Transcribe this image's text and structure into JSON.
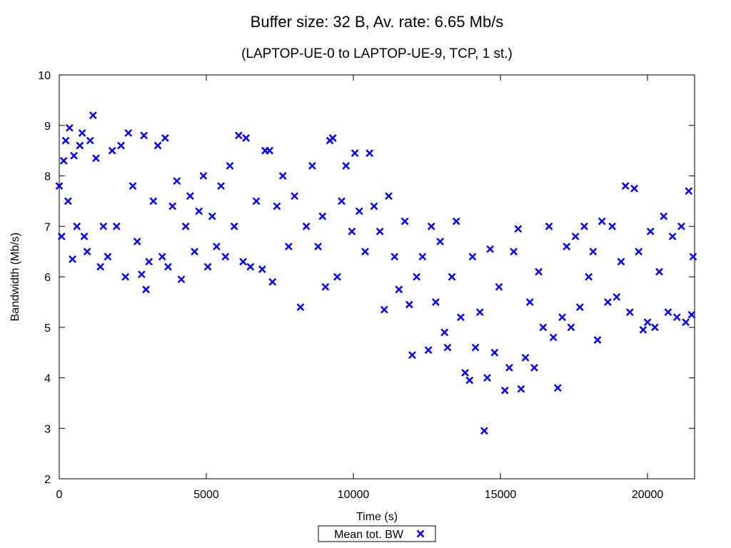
{
  "chart_data": {
    "type": "scatter",
    "title": "Buffer size: 32 B, Av. rate: 6.65 Mb/s",
    "subtitle": "(LAPTOP-UE-0 to LAPTOP-UE-9, TCP, 1 st.)",
    "xlabel": "Time (s)",
    "ylabel": "Bandwidth (Mb/s)",
    "xlim": [
      0,
      21600
    ],
    "ylim": [
      2,
      10
    ],
    "x_ticks": [
      "0",
      "5000",
      "10000",
      "15000",
      "20000"
    ],
    "x_tick_values": [
      0,
      5000,
      10000,
      15000,
      20000
    ],
    "y_ticks": [
      "2",
      "3",
      "4",
      "5",
      "6",
      "7",
      "8",
      "9",
      "10"
    ],
    "y_tick_values": [
      2,
      3,
      4,
      5,
      6,
      7,
      8,
      9,
      10
    ],
    "grid": false,
    "legend_position": "bottom-center",
    "series": [
      {
        "name": "Mean tot. BW",
        "marker": "x",
        "color": "#0000ee",
        "points": [
          [
            0,
            7.8
          ],
          [
            80,
            6.8
          ],
          [
            150,
            8.3
          ],
          [
            220,
            8.7
          ],
          [
            300,
            7.5
          ],
          [
            350,
            8.95
          ],
          [
            450,
            6.35
          ],
          [
            500,
            8.4
          ],
          [
            600,
            7.0
          ],
          [
            700,
            8.6
          ],
          [
            780,
            8.85
          ],
          [
            850,
            6.8
          ],
          [
            950,
            6.5
          ],
          [
            1050,
            8.7
          ],
          [
            1150,
            9.2
          ],
          [
            1250,
            8.35
          ],
          [
            1400,
            6.2
          ],
          [
            1500,
            7.0
          ],
          [
            1650,
            6.4
          ],
          [
            1800,
            8.5
          ],
          [
            1950,
            7.0
          ],
          [
            2100,
            8.6
          ],
          [
            2250,
            6.0
          ],
          [
            2350,
            8.85
          ],
          [
            2500,
            7.8
          ],
          [
            2650,
            6.7
          ],
          [
            2800,
            6.05
          ],
          [
            2880,
            8.8
          ],
          [
            2950,
            5.75
          ],
          [
            3050,
            6.3
          ],
          [
            3200,
            7.5
          ],
          [
            3350,
            8.6
          ],
          [
            3500,
            6.4
          ],
          [
            3600,
            8.75
          ],
          [
            3700,
            6.2
          ],
          [
            3850,
            7.4
          ],
          [
            4000,
            7.9
          ],
          [
            4150,
            5.95
          ],
          [
            4300,
            7.0
          ],
          [
            4450,
            7.6
          ],
          [
            4600,
            6.5
          ],
          [
            4750,
            7.3
          ],
          [
            4900,
            8.0
          ],
          [
            5050,
            6.2
          ],
          [
            5200,
            7.2
          ],
          [
            5350,
            6.6
          ],
          [
            5500,
            7.8
          ],
          [
            5650,
            6.4
          ],
          [
            5800,
            8.2
          ],
          [
            5950,
            7.0
          ],
          [
            6100,
            8.8
          ],
          [
            6250,
            6.3
          ],
          [
            6350,
            8.75
          ],
          [
            6500,
            6.2
          ],
          [
            6700,
            7.5
          ],
          [
            6900,
            6.15
          ],
          [
            7000,
            8.5
          ],
          [
            7150,
            8.5
          ],
          [
            7250,
            5.9
          ],
          [
            7400,
            7.4
          ],
          [
            7600,
            8.0
          ],
          [
            7800,
            6.6
          ],
          [
            8000,
            7.6
          ],
          [
            8200,
            5.4
          ],
          [
            8400,
            7.0
          ],
          [
            8600,
            8.2
          ],
          [
            8800,
            6.6
          ],
          [
            8950,
            7.2
          ],
          [
            9050,
            5.8
          ],
          [
            9200,
            8.7
          ],
          [
            9300,
            8.75
          ],
          [
            9450,
            6.0
          ],
          [
            9600,
            7.5
          ],
          [
            9750,
            8.2
          ],
          [
            9950,
            6.9
          ],
          [
            10050,
            8.45
          ],
          [
            10200,
            7.3
          ],
          [
            10400,
            6.5
          ],
          [
            10550,
            8.45
          ],
          [
            10700,
            7.4
          ],
          [
            10900,
            6.9
          ],
          [
            11050,
            5.35
          ],
          [
            11200,
            7.6
          ],
          [
            11400,
            6.4
          ],
          [
            11550,
            5.75
          ],
          [
            11750,
            7.1
          ],
          [
            11900,
            5.45
          ],
          [
            12000,
            4.45
          ],
          [
            12150,
            6.0
          ],
          [
            12350,
            6.4
          ],
          [
            12550,
            4.55
          ],
          [
            12650,
            7.0
          ],
          [
            12800,
            5.5
          ],
          [
            12950,
            6.7
          ],
          [
            13100,
            4.9
          ],
          [
            13200,
            4.6
          ],
          [
            13350,
            6.0
          ],
          [
            13500,
            7.1
          ],
          [
            13650,
            5.2
          ],
          [
            13800,
            4.1
          ],
          [
            13950,
            3.95
          ],
          [
            14050,
            6.4
          ],
          [
            14150,
            4.6
          ],
          [
            14300,
            5.3
          ],
          [
            14450,
            2.95
          ],
          [
            14550,
            4.0
          ],
          [
            14650,
            6.55
          ],
          [
            14800,
            4.5
          ],
          [
            14950,
            5.8
          ],
          [
            15150,
            3.75
          ],
          [
            15300,
            4.2
          ],
          [
            15450,
            6.5
          ],
          [
            15600,
            6.95
          ],
          [
            15700,
            3.78
          ],
          [
            15850,
            4.4
          ],
          [
            16000,
            5.5
          ],
          [
            16150,
            4.2
          ],
          [
            16300,
            6.1
          ],
          [
            16450,
            5.0
          ],
          [
            16650,
            7.0
          ],
          [
            16800,
            4.8
          ],
          [
            16950,
            3.8
          ],
          [
            17100,
            5.2
          ],
          [
            17250,
            6.6
          ],
          [
            17400,
            5.0
          ],
          [
            17550,
            6.8
          ],
          [
            17700,
            5.4
          ],
          [
            17850,
            7.0
          ],
          [
            18000,
            6.0
          ],
          [
            18150,
            6.5
          ],
          [
            18300,
            4.75
          ],
          [
            18450,
            7.1
          ],
          [
            18650,
            5.5
          ],
          [
            18800,
            7.0
          ],
          [
            18950,
            5.6
          ],
          [
            19100,
            6.3
          ],
          [
            19250,
            7.8
          ],
          [
            19400,
            5.3
          ],
          [
            19550,
            7.75
          ],
          [
            19700,
            6.5
          ],
          [
            19850,
            4.95
          ],
          [
            20000,
            5.1
          ],
          [
            20100,
            6.9
          ],
          [
            20250,
            5.0
          ],
          [
            20400,
            6.1
          ],
          [
            20550,
            7.2
          ],
          [
            20700,
            5.3
          ],
          [
            20850,
            6.8
          ],
          [
            21000,
            5.2
          ],
          [
            21150,
            7.0
          ],
          [
            21300,
            5.1
          ],
          [
            21400,
            7.7
          ],
          [
            21500,
            5.25
          ],
          [
            21550,
            6.4
          ]
        ]
      }
    ]
  }
}
